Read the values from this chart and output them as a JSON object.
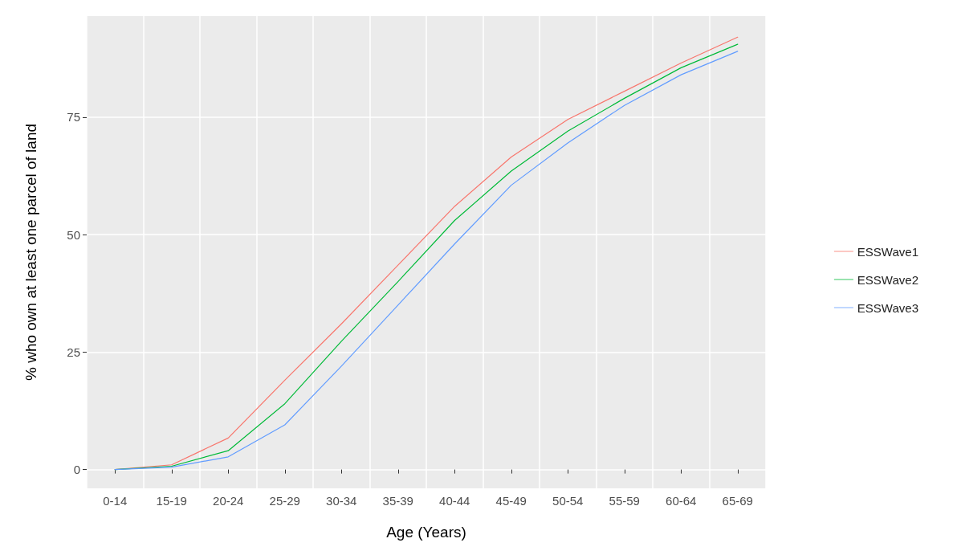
{
  "chart_data": {
    "type": "line",
    "xlabel": "Age (Years)",
    "ylabel": "% who own at least one parcel of land",
    "categories": [
      "0-14",
      "15-19",
      "20-24",
      "25-29",
      "30-34",
      "35-39",
      "40-44",
      "45-49",
      "50-54",
      "55-59",
      "60-64",
      "65-69"
    ],
    "series": [
      {
        "name": "ESSWave1",
        "color": "#f8766d",
        "values": [
          0,
          1,
          6.7,
          19,
          31,
          43.5,
          56,
          66.5,
          74.5,
          80.5,
          86.5,
          92
        ]
      },
      {
        "name": "ESSWave2",
        "color": "#00ba38",
        "values": [
          0,
          0.7,
          4,
          14,
          27.3,
          40,
          53,
          63.5,
          72,
          79,
          85.5,
          90.5
        ]
      },
      {
        "name": "ESSWave3",
        "color": "#619cff",
        "values": [
          0,
          0.5,
          2.7,
          9.5,
          22,
          35,
          48,
          60.5,
          69.5,
          77.5,
          84,
          89
        ]
      }
    ],
    "ylim": [
      -4,
      96.5
    ],
    "yticks": [
      0,
      25,
      50,
      75
    ],
    "grid": true,
    "legend": "right",
    "marker": "none",
    "line_style": "solid"
  }
}
